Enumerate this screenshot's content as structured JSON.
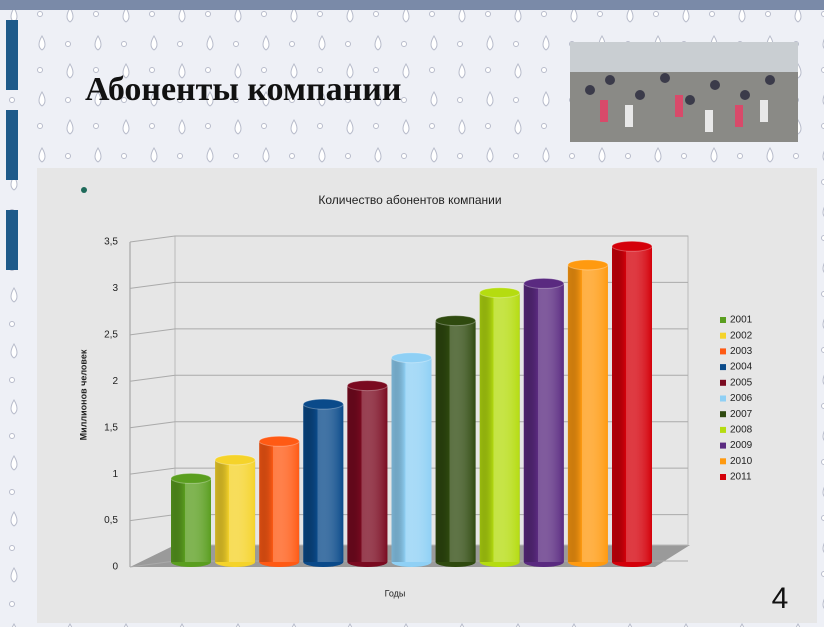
{
  "slide": {
    "title": "Абоненты компании",
    "page_number": 4
  },
  "chart_data": {
    "type": "bar",
    "title": "Количество абонентов компании",
    "y_label": "Миллионов человек",
    "x_label": "Годы",
    "ylim": [
      0,
      3.5
    ],
    "yticks": [
      0,
      {
        "value": 0.5,
        "label": "0,5"
      },
      1,
      {
        "value": 1.5,
        "label": "1,5"
      },
      2,
      {
        "value": 2.5,
        "label": "2,5"
      },
      3,
      {
        "value": 3.5,
        "label": "3,5"
      }
    ],
    "grid": true,
    "legend": "right",
    "series": [
      {
        "name": "2001",
        "color": "#5a9e1f",
        "values": [
          0.9
        ]
      },
      {
        "name": "2002",
        "color": "#f5d32a",
        "values": [
          1.1
        ]
      },
      {
        "name": "2003",
        "color": "#ff5a14",
        "values": [
          1.3
        ]
      },
      {
        "name": "2004",
        "color": "#0a4a8a",
        "values": [
          1.7
        ]
      },
      {
        "name": "2005",
        "color": "#7a0a20",
        "values": [
          1.9
        ]
      },
      {
        "name": "2006",
        "color": "#8fd0f5",
        "values": [
          2.2
        ]
      },
      {
        "name": "2007",
        "color": "#2f4a0f",
        "values": [
          2.6
        ]
      },
      {
        "name": "2008",
        "color": "#b5dc10",
        "values": [
          2.9
        ]
      },
      {
        "name": "2009",
        "color": "#5a2a80",
        "values": [
          3.0
        ]
      },
      {
        "name": "2010",
        "color": "#ff9a10",
        "values": [
          3.2
        ]
      },
      {
        "name": "2011",
        "color": "#d4000a",
        "values": [
          3.4
        ]
      }
    ]
  }
}
